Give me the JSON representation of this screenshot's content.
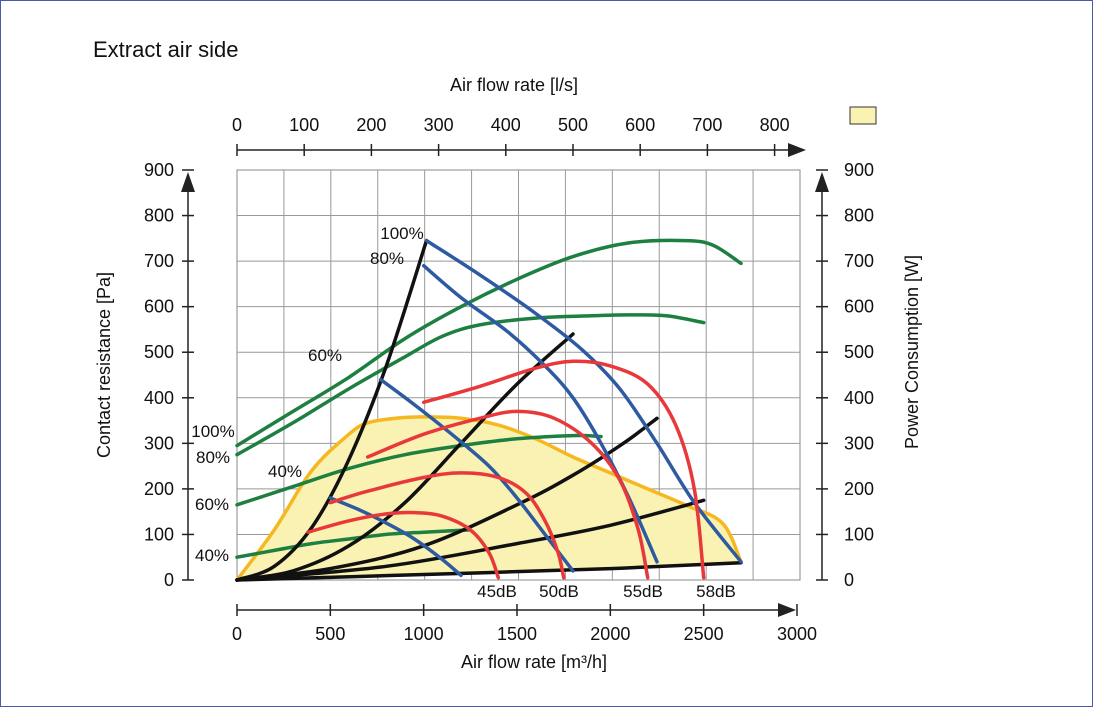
{
  "chart_data": {
    "type": "line",
    "title": "Extract air side",
    "x_bottom": {
      "label": "Air flow rate [m³/h]",
      "range": [
        0,
        3000
      ],
      "ticks": [
        "0",
        "500",
        "1000",
        "1500",
        "2000",
        "2500",
        "3000"
      ]
    },
    "x_top": {
      "label": "Air flow rate [l/s]",
      "range": [
        0,
        833.3
      ],
      "ticks": [
        "0",
        "100",
        "200",
        "300",
        "400",
        "500",
        "600",
        "700",
        "800"
      ]
    },
    "y_left": {
      "label": "Contact resistance [Pa]",
      "range": [
        0,
        900
      ],
      "ticks": [
        "0",
        "100",
        "200",
        "300",
        "400",
        "500",
        "600",
        "700",
        "800",
        "900"
      ]
    },
    "y_right": {
      "label": "Power Consumption [W]",
      "range": [
        0,
        900
      ],
      "ticks": [
        "0",
        "100",
        "200",
        "300",
        "400",
        "500",
        "600",
        "700",
        "800",
        "900"
      ]
    },
    "grid": true,
    "legend_swatch_color": "#faf2b2",
    "colors": {
      "fan_curve": "#2d5aa0",
      "power_curve": "#1e8040",
      "sound_curve": "#e8383a",
      "system_curve": "#111111",
      "envelope": "#f5b820",
      "area_fill": "#faf2b2"
    },
    "fan_curves": [
      {
        "name": "100%",
        "x": [
          1015,
          1300,
          1600,
          1850,
          2050,
          2250,
          2450,
          2700
        ],
        "y": [
          745,
          670,
          585,
          505,
          420,
          300,
          170,
          40
        ]
      },
      {
        "name": "80%",
        "x": [
          1000,
          1200,
          1450,
          1650,
          1800,
          1950,
          2100,
          2250
        ],
        "y": [
          690,
          620,
          545,
          470,
          400,
          300,
          180,
          40
        ]
      },
      {
        "name": "60%",
        "x": [
          770,
          950,
          1150,
          1350,
          1500,
          1650,
          1800
        ],
        "y": [
          440,
          385,
          320,
          250,
          180,
          100,
          20
        ]
      },
      {
        "name": "40%",
        "x": [
          500,
          650,
          800,
          950,
          1100,
          1200
        ],
        "y": [
          180,
          155,
          125,
          90,
          45,
          10
        ]
      }
    ],
    "power_curves": [
      {
        "name": "100%",
        "x": [
          0,
          300,
          600,
          900,
          1200,
          1500,
          1800,
          2100,
          2400,
          2550,
          2700
        ],
        "y": [
          295,
          370,
          445,
          530,
          600,
          660,
          710,
          740,
          745,
          735,
          695
        ]
      },
      {
        "name": "80%",
        "x": [
          0,
          300,
          600,
          900,
          1100,
          1300,
          1600,
          1900,
          2100,
          2300,
          2500
        ],
        "y": [
          275,
          345,
          420,
          490,
          535,
          560,
          575,
          580,
          582,
          580,
          565
        ]
      },
      {
        "name": "60%",
        "x": [
          0,
          300,
          600,
          900,
          1200,
          1500,
          1800,
          1950
        ],
        "y": [
          165,
          205,
          245,
          275,
          295,
          310,
          317,
          315
        ]
      },
      {
        "name": "40%",
        "x": [
          0,
          200,
          400,
          600,
          800,
          1000,
          1150,
          1250
        ],
        "y": [
          50,
          65,
          80,
          90,
          100,
          105,
          108,
          110
        ]
      }
    ],
    "sound_curves": [
      {
        "name": "45dB",
        "x": [
          380,
          600,
          800,
          950,
          1100,
          1250,
          1350,
          1400
        ],
        "y": [
          105,
          130,
          145,
          148,
          140,
          110,
          60,
          5
        ]
      },
      {
        "name": "50dB",
        "x": [
          500,
          700,
          1000,
          1200,
          1400,
          1550,
          1650,
          1720,
          1750
        ],
        "y": [
          170,
          195,
          225,
          235,
          225,
          190,
          130,
          60,
          5
        ]
      },
      {
        "name": "55dB",
        "x": [
          700,
          1000,
          1300,
          1500,
          1700,
          1900,
          2050,
          2150,
          2200
        ],
        "y": [
          270,
          320,
          355,
          370,
          355,
          300,
          220,
          110,
          5
        ]
      },
      {
        "name": "58dB",
        "x": [
          1000,
          1300,
          1600,
          1800,
          2000,
          2200,
          2350,
          2450,
          2500
        ],
        "y": [
          390,
          425,
          465,
          480,
          470,
          430,
          340,
          200,
          5
        ]
      }
    ],
    "system_curves": [
      {
        "x": [
          0,
          200,
          400,
          600,
          800,
          1015
        ],
        "y": [
          0,
          30,
          115,
          265,
          470,
          745
        ]
      },
      {
        "x": [
          0,
          300,
          600,
          900,
          1200,
          1500,
          1800
        ],
        "y": [
          0,
          20,
          75,
          170,
          300,
          430,
          540
        ]
      },
      {
        "x": [
          0,
          500,
          1000,
          1500,
          1800,
          2070,
          2250
        ],
        "y": [
          0,
          25,
          75,
          165,
          230,
          300,
          355
        ]
      },
      {
        "x": [
          0,
          800,
          1500,
          2000,
          2500
        ],
        "y": [
          0,
          30,
          80,
          120,
          175
        ]
      },
      {
        "x": [
          0,
          1000,
          2000,
          2700
        ],
        "y": [
          0,
          12,
          25,
          38
        ]
      }
    ],
    "envelope": {
      "x": [
        0,
        200,
        400,
        600,
        700,
        850,
        1000,
        1200,
        1400,
        1600,
        1800,
        2000,
        2200,
        2400,
        2600,
        2700,
        2700,
        1800,
        900,
        0
      ],
      "y": [
        0,
        110,
        240,
        320,
        345,
        355,
        358,
        355,
        340,
        310,
        270,
        235,
        200,
        165,
        125,
        40,
        40,
        25,
        12,
        0
      ]
    },
    "annotations": {
      "fan": [
        "100%",
        "80%",
        "60%",
        "40%"
      ],
      "power": [
        "100%",
        "80%",
        "60%",
        "40%"
      ],
      "sound": [
        "45dB",
        "50dB",
        "55dB",
        "58dB"
      ]
    }
  }
}
